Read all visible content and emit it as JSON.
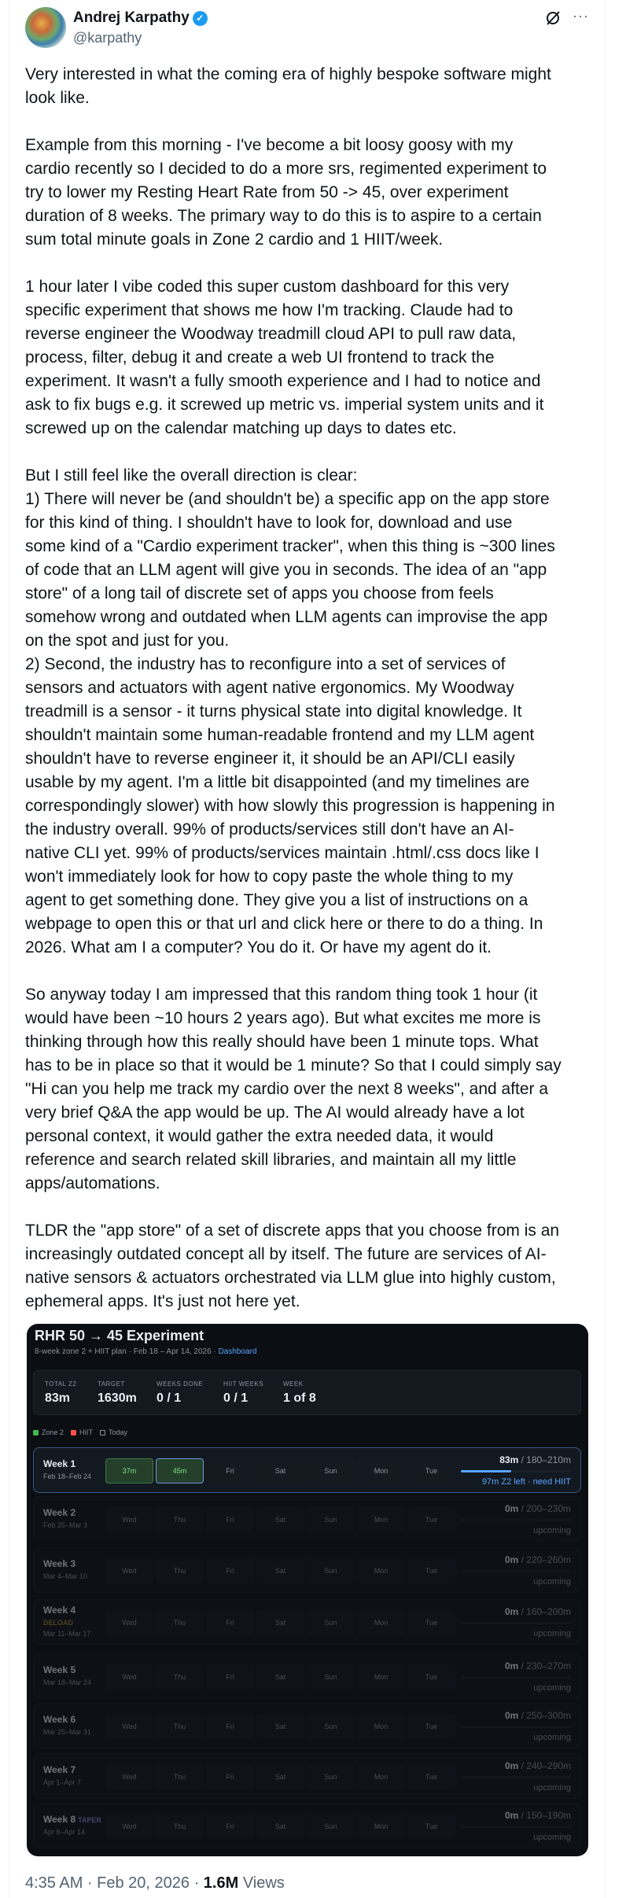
{
  "author": {
    "name": "Andrej Karpathy",
    "handle": "@karpathy",
    "verified": true
  },
  "icons": {
    "grok": "grok-icon",
    "more": "more-icon",
    "verified": "verified-badge-icon"
  },
  "tweet_paragraphs": [
    [
      "Very interested in what the coming era of highly bespoke software might",
      "look like."
    ],
    [
      "Example from this morning - I've become a bit loosy goosy with my",
      "cardio recently so I decided to do a more srs, regimented experiment to",
      "try to lower my Resting Heart Rate from 50 -> 45, over experiment",
      "duration of 8 weeks. The primary way to do this is to aspire to a certain",
      "sum total minute goals in Zone 2 cardio and 1 HIIT/week."
    ],
    [
      "1 hour later I vibe coded this super custom dashboard for this very",
      "specific experiment that shows me how I'm tracking. Claude had to",
      "reverse engineer the Woodway treadmill cloud API to pull raw data,",
      "process, filter, debug it and create a web UI frontend to track the",
      "experiment. It wasn't a fully smooth experience and I had to notice and",
      "ask to fix bugs e.g. it screwed up metric vs. imperial system units and it",
      "screwed up on the calendar matching up days to dates etc."
    ],
    [
      "But I still feel like the overall direction is clear:",
      "1) There will never be (and shouldn't be) a specific app on the app store",
      "for this kind of thing. I shouldn't have to look for, download and use",
      "some kind of a \"Cardio experiment tracker\", when this thing is ~300 lines",
      "of code that an LLM agent will give you in seconds. The idea of an \"app",
      "store\" of a long tail of discrete set of apps you choose from feels",
      "somehow wrong and outdated when LLM agents can improvise the app",
      "on the spot and just for you.",
      "2) Second, the industry has to reconfigure into a set of services of",
      "sensors and actuators with agent native ergonomics. My Woodway",
      "treadmill is a sensor - it turns physical state into digital knowledge. It",
      "shouldn't maintain some human-readable frontend and my LLM agent",
      "shouldn't have to reverse engineer it, it should be an API/CLI easily",
      "usable by my agent. I'm a little bit disappointed (and my timelines are",
      "correspondingly slower) with how slowly this progression is happening in",
      "the industry overall. 99% of products/services still don't have an AI-",
      "native CLI yet. 99% of products/services maintain .html/.css docs like I",
      "won't immediately look for how to copy paste the whole thing to my",
      "agent to get something done. They give you a list of instructions on a",
      "webpage to open this or that url and click here or there to do a thing. In",
      "2026. What am I a computer? You do it. Or have my agent do it."
    ],
    [
      "So anyway today I am impressed that this random thing took 1 hour (it",
      "would have been ~10 hours 2 years ago). But what excites me more is",
      "thinking through how this really should have been 1 minute tops. What",
      "has to be in place so that it would be 1 minute? So that I could simply say",
      "\"Hi can you help me track my cardio over the next 8 weeks\", and after a",
      "very brief Q&A the app would be up. The AI would already have a lot",
      "personal context, it would gather the extra needed data, it would",
      "reference and search related skill libraries, and maintain all my little",
      "apps/automations."
    ],
    [
      "TLDR the \"app store\" of a set of discrete apps that you choose from is an",
      "increasingly outdated concept all by itself. The future are services of AI-",
      "native sensors & actuators orchestrated via LLM glue into highly custom,",
      "ephemeral apps. It's just not here yet."
    ]
  ],
  "dashboard": {
    "title": "RHR 50 → 45 Experiment",
    "subtitle": "8-week zone 2 + HIIT plan · Feb 18 – Apr 14, 2026 · ",
    "subtitle_link": "Dashboard",
    "stats": [
      {
        "label": "TOTAL Z2",
        "value": "83m"
      },
      {
        "label": "TARGET",
        "value": "1630m"
      },
      {
        "label": "WEEKS DONE",
        "value": "0 / 1"
      },
      {
        "label": "HIIT WEEKS",
        "value": "0 / 1"
      },
      {
        "label": "WEEK",
        "value": "1 of 8"
      }
    ],
    "legend": [
      {
        "label": "Zone 2",
        "color": "#3fb950"
      },
      {
        "label": "HIIT",
        "color": "#f85149"
      },
      {
        "label": "Today",
        "color": "outline"
      }
    ],
    "colors": {
      "zone2": "#3fb950",
      "hiit": "#f85149",
      "accent": "#58a6ff",
      "deload": "#a57c2a",
      "taper": "#8b7fd6"
    },
    "weeks": [
      {
        "label": "Week 1",
        "dates": "Feb 18–Feb 24",
        "current": true,
        "cells": [
          {
            "text": "37m",
            "type": "z2"
          },
          {
            "text": "45m",
            "type": "today"
          },
          {
            "text": "Fri"
          },
          {
            "text": "Sat"
          },
          {
            "text": "Sun"
          },
          {
            "text": "Mon"
          },
          {
            "text": "Tue"
          }
        ],
        "total": "83m",
        "target": " / 180–210m",
        "progress": 0.46,
        "status": "97m Z2 left · need HIIT"
      },
      {
        "label": "Week 2",
        "dates": "Feb 25–Mar 3",
        "cells": [
          {
            "text": "Wed"
          },
          {
            "text": "Thu"
          },
          {
            "text": "Fri"
          },
          {
            "text": "Sat"
          },
          {
            "text": "Sun"
          },
          {
            "text": "Mon"
          },
          {
            "text": "Tue"
          }
        ],
        "total": "0m",
        "target": " / 200–230m",
        "progress": 0,
        "status": "upcoming"
      },
      {
        "label": "Week 3",
        "dates": "Mar 4–Mar 10",
        "cells": [
          {
            "text": "Wed"
          },
          {
            "text": "Thu"
          },
          {
            "text": "Fri"
          },
          {
            "text": "Sat"
          },
          {
            "text": "Sun"
          },
          {
            "text": "Mon"
          },
          {
            "text": "Tue"
          }
        ],
        "total": "0m",
        "target": " / 220–260m",
        "progress": 0,
        "status": "upcoming"
      },
      {
        "label": "Week 4",
        "deload": "DELOAD",
        "dates": "Mar 11–Mar 17",
        "cells": [
          {
            "text": "Wed"
          },
          {
            "text": "Thu"
          },
          {
            "text": "Fri"
          },
          {
            "text": "Sat"
          },
          {
            "text": "Sun"
          },
          {
            "text": "Mon"
          },
          {
            "text": "Tue"
          }
        ],
        "total": "0m",
        "target": " / 160–200m",
        "progress": 0,
        "status": "upcoming"
      },
      {
        "label": "Week 5",
        "dates": "Mar 18–Mar 24",
        "cells": [
          {
            "text": "Wed"
          },
          {
            "text": "Thu"
          },
          {
            "text": "Fri"
          },
          {
            "text": "Sat"
          },
          {
            "text": "Sun"
          },
          {
            "text": "Mon"
          },
          {
            "text": "Tue"
          }
        ],
        "total": "0m",
        "target": " / 230–270m",
        "progress": 0,
        "status": "upcoming"
      },
      {
        "label": "Week 6",
        "dates": "Mar 25–Mar 31",
        "cells": [
          {
            "text": "Wed"
          },
          {
            "text": "Thu"
          },
          {
            "text": "Fri"
          },
          {
            "text": "Sat"
          },
          {
            "text": "Sun"
          },
          {
            "text": "Mon"
          },
          {
            "text": "Tue"
          }
        ],
        "total": "0m",
        "target": " / 250–300m",
        "progress": 0,
        "status": "upcoming"
      },
      {
        "label": "Week 7",
        "dates": "Apr 1–Apr 7",
        "cells": [
          {
            "text": "Wed"
          },
          {
            "text": "Thu"
          },
          {
            "text": "Fri"
          },
          {
            "text": "Sat"
          },
          {
            "text": "Sun"
          },
          {
            "text": "Mon"
          },
          {
            "text": "Tue"
          }
        ],
        "total": "0m",
        "target": " / 240–290m",
        "progress": 0,
        "status": "upcoming"
      },
      {
        "label": "Week 8",
        "tag": "TAPER",
        "dates": "Apr 8–Apr 14",
        "cells": [
          {
            "text": "Wed"
          },
          {
            "text": "Thu"
          },
          {
            "text": "Fri"
          },
          {
            "text": "Sat"
          },
          {
            "text": "Sun"
          },
          {
            "text": "Mon"
          },
          {
            "text": "Tue"
          }
        ],
        "total": "0m",
        "target": " / 150–190m",
        "progress": 0,
        "status": "upcoming"
      }
    ]
  },
  "timestamp": {
    "time": "4:35 AM · Feb 20, 2026 · ",
    "views_count": "1.6M",
    "views_label": " Views"
  }
}
